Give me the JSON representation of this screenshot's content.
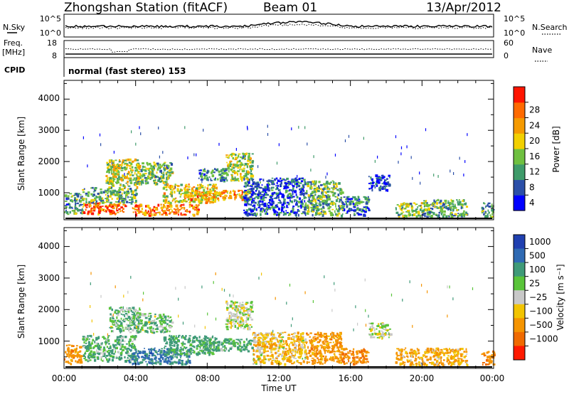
{
  "header": {
    "station": "Zhongshan Station (fitACF)",
    "beam": "Beam 01",
    "date": "13/Apr/2012"
  },
  "params": {
    "nsky_label": "N.Sky",
    "nsky_top": "10^5",
    "nsky_bottom": "10^0",
    "nsearch_label": "N.Search",
    "nsearch_top": "10^5",
    "nsearch_bottom": "10^0",
    "freq_label": "Freq.",
    "freq_unit": "[MHz]",
    "freq_top": "18",
    "freq_bottom": "8",
    "nave_label": "Nave",
    "nave_top": "60",
    "nave_bottom": "0",
    "cpid_label": "CPID",
    "cpid_value": "normal (fast stereo) 153"
  },
  "axes": {
    "ylabel": "Slant Range [km]",
    "xlabel": "Time UT",
    "yticks": [
      "1000",
      "2000",
      "3000",
      "4000"
    ],
    "xticks": [
      "00:00",
      "04:00",
      "08:00",
      "12:00",
      "16:00",
      "20:00",
      "00:00"
    ]
  },
  "colorbars": {
    "power": {
      "label": "Power [dB]",
      "ticks": [
        "4",
        "8",
        "12",
        "16",
        "20",
        "24",
        "28"
      ],
      "colors": [
        "#0000ff",
        "#2b4fa8",
        "#3f9b6a",
        "#6fc040",
        "#f2d000",
        "#f59a00",
        "#ff6a00",
        "#ff1500"
      ]
    },
    "velocity": {
      "label": "Velocity [m s⁻¹]",
      "ticks": [
        "1000",
        "500",
        "100",
        "25",
        "−25",
        "−100",
        "−500",
        "−1000"
      ],
      "colors": [
        "#2040b0",
        "#2f6ab3",
        "#3f9a78",
        "#5ac43a",
        "#c8c8c8",
        "#f2c400",
        "#f59400",
        "#f06a00",
        "#ff1a00"
      ]
    }
  },
  "chart_data": [
    {
      "type": "heatmap",
      "title": "Power",
      "ylabel": "Slant Range [km]",
      "xlabel": "",
      "xlim": [
        0,
        24
      ],
      "ylim": [
        180,
        4600
      ],
      "color_scale": [
        0,
        30
      ],
      "regions": [
        {
          "t0": 0.0,
          "t1": 1.0,
          "r0": 300,
          "r1": 1000,
          "value": 10
        },
        {
          "t0": 1.0,
          "t1": 3.5,
          "r0": 350,
          "r1": 700,
          "value": 26
        },
        {
          "t0": 1.0,
          "t1": 4.0,
          "r0": 700,
          "r1": 1200,
          "value": 12
        },
        {
          "t0": 2.3,
          "t1": 4.2,
          "r0": 1200,
          "r1": 2100,
          "value": 16
        },
        {
          "t0": 3.8,
          "t1": 7.5,
          "r0": 300,
          "r1": 650,
          "value": 24
        },
        {
          "t0": 4.0,
          "t1": 6.0,
          "r0": 1300,
          "r1": 2000,
          "value": 14
        },
        {
          "t0": 5.5,
          "t1": 8.5,
          "r0": 700,
          "r1": 1300,
          "value": 18
        },
        {
          "t0": 7.0,
          "t1": 10.5,
          "r0": 800,
          "r1": 1100,
          "value": 22
        },
        {
          "t0": 7.5,
          "t1": 9.0,
          "r0": 1400,
          "r1": 1800,
          "value": 10
        },
        {
          "t0": 9.0,
          "t1": 10.5,
          "r0": 1400,
          "r1": 2300,
          "value": 15
        },
        {
          "t0": 10.0,
          "t1": 13.5,
          "r0": 300,
          "r1": 1500,
          "value": 6
        },
        {
          "t0": 13.5,
          "t1": 15.5,
          "r0": 300,
          "r1": 1400,
          "value": 12
        },
        {
          "t0": 15.5,
          "t1": 17.0,
          "r0": 300,
          "r1": 900,
          "value": 8
        },
        {
          "t0": 17.0,
          "t1": 18.2,
          "r0": 1100,
          "r1": 1600,
          "value": 4
        },
        {
          "t0": 18.5,
          "t1": 20.0,
          "r0": 250,
          "r1": 700,
          "value": 14
        },
        {
          "t0": 20.0,
          "t1": 22.5,
          "r0": 250,
          "r1": 800,
          "value": 12
        },
        {
          "t0": 23.3,
          "t1": 24.0,
          "r0": 250,
          "r1": 700,
          "value": 10
        }
      ]
    },
    {
      "type": "heatmap",
      "title": "Velocity",
      "ylabel": "Slant Range [km]",
      "xlabel": "Time UT",
      "xlim": [
        0,
        24
      ],
      "ylim": [
        180,
        4600
      ],
      "color_scale": [
        -1000,
        1000
      ],
      "regions": [
        {
          "t0": 0.0,
          "t1": 1.0,
          "r0": 300,
          "r1": 900,
          "value": -300
        },
        {
          "t0": 1.0,
          "t1": 4.0,
          "r0": 400,
          "r1": 1200,
          "value": 120
        },
        {
          "t0": 2.5,
          "t1": 4.2,
          "r0": 1300,
          "r1": 2100,
          "value": 80
        },
        {
          "t0": 3.5,
          "t1": 7.0,
          "r0": 300,
          "r1": 800,
          "value": 600
        },
        {
          "t0": 4.0,
          "t1": 6.0,
          "r0": 1300,
          "r1": 1900,
          "value": 60
        },
        {
          "t0": 5.5,
          "t1": 8.5,
          "r0": 600,
          "r1": 1200,
          "value": 200
        },
        {
          "t0": 7.5,
          "t1": 10.5,
          "r0": 700,
          "r1": 1100,
          "value": 150
        },
        {
          "t0": 9.0,
          "t1": 10.5,
          "r0": 1400,
          "r1": 2300,
          "value": 0
        },
        {
          "t0": 10.5,
          "t1": 13.5,
          "r0": 300,
          "r1": 1300,
          "value": -60
        },
        {
          "t0": 13.5,
          "t1": 15.5,
          "r0": 300,
          "r1": 1300,
          "value": -300
        },
        {
          "t0": 15.5,
          "t1": 17.0,
          "r0": 300,
          "r1": 800,
          "value": -500
        },
        {
          "t0": 17.0,
          "t1": 18.2,
          "r0": 1100,
          "r1": 1600,
          "value": 10
        },
        {
          "t0": 18.5,
          "t1": 22.5,
          "r0": 250,
          "r1": 800,
          "value": -150
        },
        {
          "t0": 23.3,
          "t1": 24.0,
          "r0": 250,
          "r1": 700,
          "value": -400
        }
      ]
    }
  ]
}
